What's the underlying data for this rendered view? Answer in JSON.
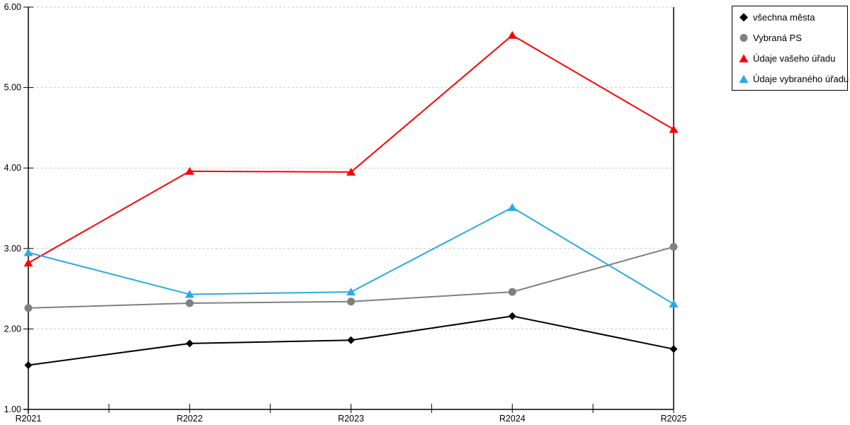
{
  "chart_data": {
    "type": "line",
    "title": "",
    "xlabel": "",
    "ylabel": "",
    "categories": [
      "R2021",
      "R2022",
      "R2023",
      "R2024",
      "R2025"
    ],
    "series": [
      {
        "name": "všechna města",
        "color": "#000000",
        "marker": "diamond",
        "values": [
          1.55,
          1.82,
          1.86,
          2.16,
          1.75
        ]
      },
      {
        "name": "Vybraná PS",
        "color": "#808080",
        "marker": "circle",
        "values": [
          2.26,
          2.32,
          2.34,
          2.46,
          3.02
        ]
      },
      {
        "name": "Údaje vašeho úřadu",
        "color": "#ff0000",
        "marker": "triangle",
        "values": [
          2.82,
          3.96,
          3.95,
          5.65,
          4.48
        ]
      },
      {
        "name": "Údaje vybraného úřadu",
        "color": "#29abe2",
        "marker": "triangle",
        "values": [
          2.95,
          2.43,
          2.46,
          3.51,
          2.31
        ]
      }
    ],
    "ylim": [
      1,
      6
    ],
    "ytick_step": 1,
    "yticks": [
      {
        "value": 1,
        "label": "1.00"
      },
      {
        "value": 2,
        "label": "2.00"
      },
      {
        "value": 3,
        "label": "3.00"
      },
      {
        "value": 4,
        "label": "4.00"
      },
      {
        "value": 5,
        "label": "5.00"
      },
      {
        "value": 6,
        "label": "6.00"
      }
    ],
    "grid": true,
    "grid_color": "#c8c8c8",
    "axis_color": "#000000",
    "legend_position": "top-right"
  }
}
